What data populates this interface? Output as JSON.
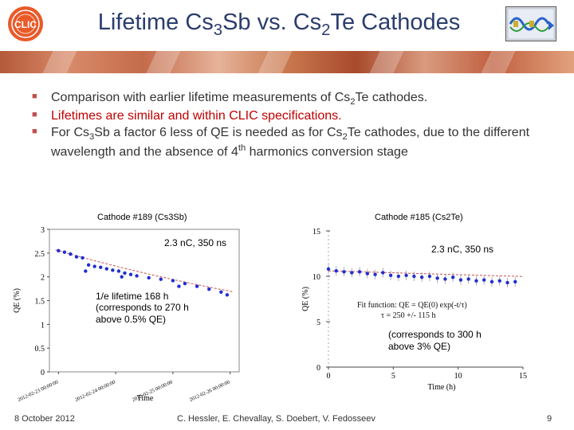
{
  "slide": {
    "title_parts": {
      "a": "Lifetime Cs",
      "b": "3",
      "c": "Sb vs. Cs",
      "d": "2",
      "e": "Te Cathodes"
    },
    "logo_text": "CLIC",
    "footer": {
      "date": "8 October 2012",
      "authors": "C. Hessler, E. Chevallay, S. Doebert, V. Fedosseev",
      "page": "9"
    }
  },
  "bullets": {
    "b1": {
      "a": "Comparison with earlier lifetime measurements of Cs",
      "sub": "2",
      "b": "Te cathodes."
    },
    "b2": {
      "text": "Lifetimes are similar and within CLIC specifications."
    },
    "b3": {
      "a": "For Cs",
      "sub1": "3",
      "b": "Sb a factor 6 less of QE is needed as for Cs",
      "sub2": "2",
      "c": "Te cathodes, due to the different wavelength and the absence of 4",
      "sup": "th",
      "d": " harmonics conversion stage"
    }
  },
  "colors": {
    "title": "#2b3d6e",
    "bullet_mark": "#c0504d",
    "red_text": "#c00000",
    "data_points": "#1f2fd0",
    "fit_line": "#c85050"
  },
  "left_chart": {
    "title": "Cathode #189 (Cs3Sb)",
    "anno1": "2.3 nC, 350 ns",
    "anno2_lines": [
      "1/e lifetime 168 h",
      "(corresponds to 270 h",
      "above 0.5% QE)"
    ],
    "ylabel": "QE (%)",
    "xlabel": "Time",
    "xticks": [
      "2012-02-23 00:00:00",
      "2012-02-24 00:00:00",
      "2012-02-25 00:00:00",
      "2012-02-26 00:00:00"
    ]
  },
  "right_chart": {
    "title": "Cathode #185 (Cs2Te)",
    "anno1": "2.3 nC, 350 ns",
    "fit_lines": [
      "Fit function: QE = QE(0) exp(-t/τ)",
      "τ = 250 +/- 115 h"
    ],
    "anno2_lines": [
      "(corresponds to 300 h",
      "above 3% QE)"
    ],
    "ylabel": "QE (%)",
    "xlabel": "Time (h)"
  },
  "chart_data": [
    {
      "type": "scatter",
      "title": "Cathode #189 (Cs3Sb)",
      "xlabel": "Time",
      "ylabel": "QE (%)",
      "x_unit": "days from 2012-02-23",
      "xlim": [
        -0.15,
        3.0
      ],
      "ylim": [
        0,
        3
      ],
      "yticks": [
        "0",
        "0.5",
        "1",
        "1.5",
        "2",
        "2.5",
        "3"
      ],
      "x": [
        0.0,
        0.1,
        0.2,
        0.3,
        0.4,
        0.45,
        0.5,
        0.6,
        0.7,
        0.8,
        0.9,
        1.0,
        1.05,
        1.1,
        1.2,
        1.3,
        1.5,
        1.7,
        1.9,
        2.0,
        2.1,
        2.3,
        2.5,
        2.7,
        2.8
      ],
      "values": [
        2.55,
        2.52,
        2.48,
        2.42,
        2.4,
        2.12,
        2.25,
        2.22,
        2.2,
        2.17,
        2.14,
        2.12,
        2.0,
        2.08,
        2.05,
        2.02,
        1.98,
        1.95,
        1.92,
        1.8,
        1.86,
        1.8,
        1.74,
        1.68,
        1.62
      ],
      "fit": {
        "model": "QE0*exp(-t/tau)",
        "QE0": 2.55,
        "tau_days": 7.0
      }
    },
    {
      "type": "scatter",
      "title": "Cathode #185 (Cs2Te)",
      "xlabel": "Time (h)",
      "ylabel": "QE (%)",
      "xlim": [
        0,
        15
      ],
      "ylim": [
        0,
        15
      ],
      "xticks": [
        "0",
        "5",
        "10",
        "15"
      ],
      "yticks": [
        "0",
        "5",
        "10",
        "15"
      ],
      "x": [
        0,
        0.6,
        1.2,
        1.8,
        2.4,
        3,
        3.6,
        4.2,
        4.8,
        5.4,
        6,
        6.6,
        7.2,
        7.8,
        8.4,
        9,
        9.6,
        10.2,
        10.8,
        11.4,
        12,
        12.6,
        13.2,
        13.8,
        14.4
      ],
      "values": [
        10.8,
        10.6,
        10.5,
        10.4,
        10.5,
        10.3,
        10.2,
        10.4,
        10.1,
        10.0,
        10.1,
        10.0,
        9.9,
        10.0,
        9.8,
        9.7,
        9.9,
        9.6,
        9.7,
        9.5,
        9.6,
        9.4,
        9.5,
        9.3,
        9.4
      ],
      "fit": {
        "model": "QE0*exp(-t/tau)",
        "QE0": 10.6,
        "tau_h": 250
      }
    }
  ]
}
